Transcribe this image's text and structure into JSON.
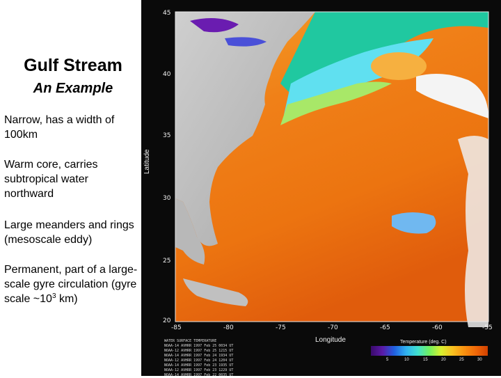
{
  "slide": {
    "title": "Gulf Stream",
    "subtitle": "An Example",
    "bullets": {
      "b1": "Narrow, has a width of 100km",
      "b2": "Warm core, carries subtropical water northward",
      "b3": "Large meanders and rings (mesoscale eddy)",
      "b4_main": "Permanent, part of a large-scale gyre circulation (gyre scale ~10",
      "b4_sup": "3",
      "b4_tail": " km)"
    }
  },
  "map": {
    "lat_ticks": [
      "45",
      "40",
      "35",
      "30",
      "25",
      "20"
    ],
    "lon_ticks": [
      "-85",
      "-80",
      "-75",
      "-70",
      "-65",
      "-60",
      "-55"
    ],
    "lat_axis_label": "Latitude",
    "lon_axis_label": "Longitude",
    "colorbar_title": "Temperature (deg. C)",
    "colorbar_ticks": [
      "5",
      "10",
      "15",
      "20",
      "25",
      "30"
    ],
    "footer_lines": [
      "WATER SURFACE TEMPERATURE",
      "NOAA-14 AVHRR 1997 Feb 25 0034 UT",
      "NOAA-12 AVHRR 1997 Feb 25 1215 UT",
      "NOAA-14 AVHRR 1997 Feb 24 1934 UT",
      "NOAA-12 AVHRR 1997 Feb 24 1204 UT",
      "NOAA-14 AVHRR 1997 Feb 23 1935 UT",
      "NOAA-12 AVHRR 1997 Feb 23 1229 UT",
      "NOAA-14 AVHRR 1997 Feb 22 0035 UT"
    ]
  }
}
